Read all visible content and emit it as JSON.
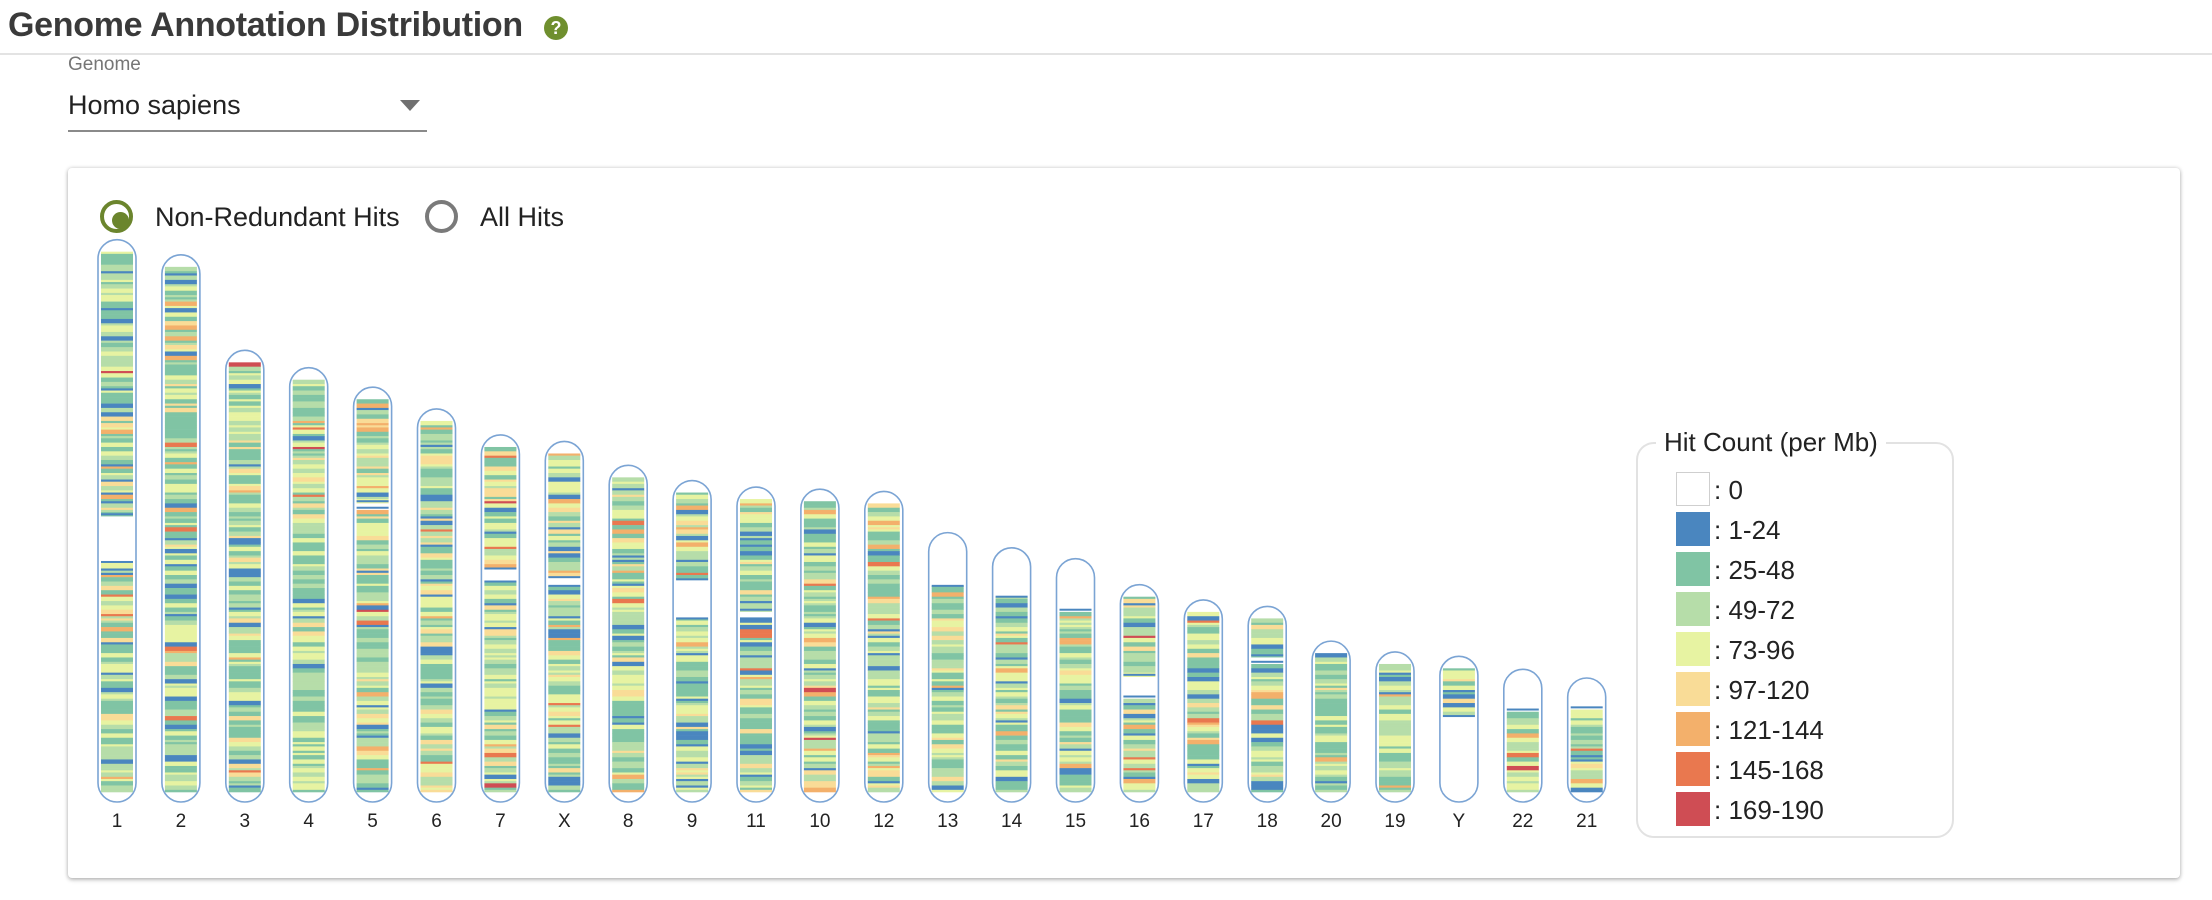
{
  "header": {
    "title": "Genome Annotation Distribution",
    "help_icon": "question-circle-icon",
    "help_glyph": "?"
  },
  "genome_select": {
    "label": "Genome",
    "value": "Homo sapiens",
    "icon": "caret-down-icon"
  },
  "hit_mode": {
    "options": [
      {
        "label": "Non-Redundant Hits",
        "selected": true
      },
      {
        "label": "All Hits",
        "selected": false
      }
    ]
  },
  "colors": {
    "accent": "#6b852d",
    "chromosome_outline": "#7ba4d4"
  },
  "legend": {
    "title": "Hit Count (per Mb)",
    "items": [
      {
        "label": ": 0",
        "color": "#ffffff"
      },
      {
        "label": ": 1-24",
        "color": "#4a86bf"
      },
      {
        "label": ": 25-48",
        "color": "#80c4a4"
      },
      {
        "label": ": 49-72",
        "color": "#b6dda9"
      },
      {
        "label": ": 73-96",
        "color": "#e7f3a2"
      },
      {
        "label": ": 97-120",
        "color": "#f9dc97"
      },
      {
        "label": ": 121-144",
        "color": "#f3b06b"
      },
      {
        "label": ": 145-168",
        "color": "#e9784f"
      },
      {
        "label": ": 169-190",
        "color": "#cf4d54"
      }
    ]
  },
  "chart_data": {
    "type": "heatmap",
    "title": "",
    "value_label": "Hit Count (per Mb)",
    "unit": "Mb",
    "bin_ranges": [
      "0",
      "1-24",
      "25-48",
      "49-72",
      "73-96",
      "97-120",
      "121-144",
      "145-168",
      "169-190"
    ],
    "chromosomes": [
      {
        "name": "1",
        "length": 249,
        "gaps": [
          [
            121,
            143
          ]
        ]
      },
      {
        "name": "2",
        "length": 242,
        "gaps": []
      },
      {
        "name": "3",
        "length": 198,
        "gaps": []
      },
      {
        "name": "4",
        "length": 190,
        "gaps": []
      },
      {
        "name": "5",
        "length": 181,
        "gaps": [
          [
            47,
            50
          ]
        ]
      },
      {
        "name": "6",
        "length": 171,
        "gaps": []
      },
      {
        "name": "7",
        "length": 159,
        "gaps": [
          [
            56,
            62
          ]
        ]
      },
      {
        "name": "X",
        "length": 156,
        "gaps": [
          [
            57,
            61
          ]
        ]
      },
      {
        "name": "8",
        "length": 145,
        "gaps": []
      },
      {
        "name": "9",
        "length": 138,
        "gaps": [
          [
            40,
            58
          ]
        ]
      },
      {
        "name": "11",
        "length": 135,
        "gaps": [
          [
            51,
            55
          ]
        ]
      },
      {
        "name": "10",
        "length": 134,
        "gaps": []
      },
      {
        "name": "12",
        "length": 133,
        "gaps": []
      },
      {
        "name": "13",
        "length": 114,
        "gaps": [
          [
            0,
            19
          ]
        ]
      },
      {
        "name": "14",
        "length": 107,
        "gaps": [
          [
            0,
            17
          ]
        ]
      },
      {
        "name": "15",
        "length": 102,
        "gaps": [
          [
            0,
            18
          ]
        ]
      },
      {
        "name": "16",
        "length": 90,
        "gaps": [
          [
            36,
            46
          ]
        ]
      },
      {
        "name": "17",
        "length": 83,
        "gaps": []
      },
      {
        "name": "18",
        "length": 80,
        "gaps": [
          [
            17,
            20
          ]
        ]
      },
      {
        "name": "20",
        "length": 64,
        "gaps": []
      },
      {
        "name": "19",
        "length": 59,
        "gaps": []
      },
      {
        "name": "Y",
        "length": 57,
        "gaps": [
          [
            22,
            57
          ]
        ]
      },
      {
        "name": "22",
        "length": 51,
        "gaps": [
          [
            0,
            13
          ]
        ]
      },
      {
        "name": "21",
        "length": 47,
        "gaps": [
          [
            0,
            8
          ]
        ]
      }
    ]
  }
}
